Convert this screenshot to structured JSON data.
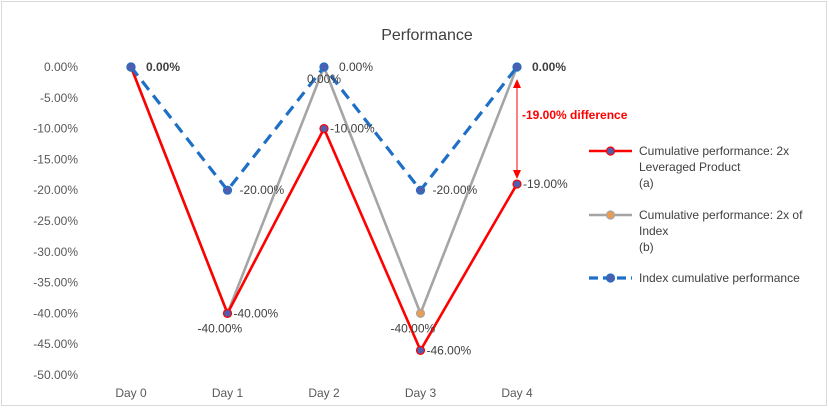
{
  "chart_data": {
    "type": "line",
    "title": "Performance",
    "categories": [
      "Day 0",
      "Day 1",
      "Day 2",
      "Day 3",
      "Day 4"
    ],
    "ylim": [
      -50,
      0
    ],
    "ytick_step": 5,
    "ytick_labels": [
      "0.00%",
      "-5.00%",
      "-10.00%",
      "-15.00%",
      "-20.00%",
      "-25.00%",
      "-30.00%",
      "-35.00%",
      "-40.00%",
      "-45.00%",
      "-50.00%"
    ],
    "grid": false,
    "legend_position": "right",
    "series": [
      {
        "key": "leveraged",
        "name_lines": [
          "Cumulative performance: 2x",
          "Leveraged Product",
          "(a)"
        ],
        "values": [
          0,
          -40,
          -10,
          -46,
          -19
        ],
        "labels": [
          "",
          "-40.00%",
          "-10.00%",
          "-46.00%",
          "-19.00%"
        ],
        "color": "#ff0000",
        "marker_color": "#4f5fb0",
        "dashed": false
      },
      {
        "key": "index2x",
        "name_lines": [
          "Cumulative performance: 2x of",
          "Index",
          "(b)"
        ],
        "values": [
          0,
          -40,
          0,
          -40,
          0
        ],
        "labels": [
          "",
          "-40.00%",
          "0.00%",
          "-40.00%",
          ""
        ],
        "color": "#a5a5a5",
        "marker_color": "#ed9a53",
        "dashed": false
      },
      {
        "key": "index",
        "name_lines": [
          "Index cumulative performance"
        ],
        "values": [
          0,
          -20,
          0,
          -20,
          0
        ],
        "labels": [
          "0.00%",
          "-20.00%",
          "0.00%",
          "-20.00%",
          "0.00%"
        ],
        "color": "#1f6fc6",
        "marker_color": "#4f5fb0",
        "dashed": true
      }
    ],
    "annotation": {
      "text": "-19.00% difference",
      "color": "#ff0000",
      "between": [
        0,
        -19
      ],
      "category_index": 4
    }
  }
}
